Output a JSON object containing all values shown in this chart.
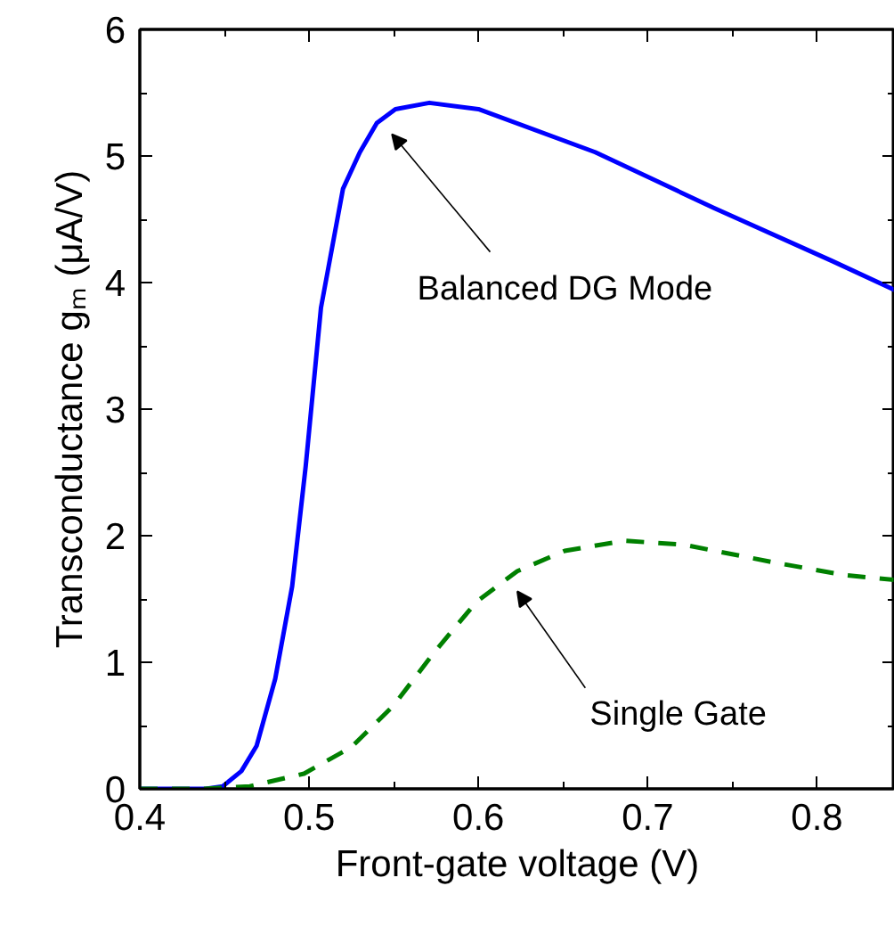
{
  "chart_data": {
    "type": "line",
    "xlabel": "Front-gate voltage (V)",
    "ylabel": "Transconductance gₘ (μA/V)",
    "xlim": [
      0.4,
      0.846
    ],
    "ylim": [
      0,
      6
    ],
    "xticks": [
      0.4,
      {
        "value": 0.45,
        "label": null
      },
      0.5,
      {
        "value": 0.55,
        "label": null
      },
      0.6,
      {
        "value": 0.65,
        "label": null
      },
      0.7,
      {
        "value": 0.75,
        "label": null
      },
      0.8
    ],
    "yticks": [
      0,
      {
        "value": 0.5,
        "label": null
      },
      1,
      {
        "value": 1.5,
        "label": null
      },
      2,
      {
        "value": 2.5,
        "label": null
      },
      3,
      {
        "value": 3.5,
        "label": null
      },
      4,
      {
        "value": 4.5,
        "label": null
      },
      5,
      {
        "value": 5.5,
        "label": null
      },
      6
    ],
    "grid": false,
    "series": [
      {
        "color": "#0000ff",
        "line_style": "solid",
        "x": [
          0.4,
          0.439,
          0.449,
          0.46,
          0.469,
          0.48,
          0.49,
          0.498,
          0.507,
          0.52,
          0.53,
          0.54,
          0.551,
          0.571,
          0.6,
          0.669,
          0.739,
          0.809,
          0.846
        ],
        "values": [
          0,
          0,
          0.02,
          0.14,
          0.34,
          0.87,
          1.6,
          2.55,
          3.8,
          4.74,
          5.03,
          5.26,
          5.37,
          5.42,
          5.37,
          5.03,
          4.59,
          4.17,
          3.94
        ]
      },
      {
        "color": "#008000",
        "line_style": "dashed",
        "x": [
          0.4,
          0.437,
          0.465,
          0.497,
          0.525,
          0.55,
          0.574,
          0.599,
          0.623,
          0.651,
          0.686,
          0.721,
          0.774,
          0.816,
          0.846
        ],
        "values": [
          0,
          0,
          0.02,
          0.12,
          0.33,
          0.66,
          1.08,
          1.48,
          1.72,
          1.88,
          1.96,
          1.93,
          1.79,
          1.69,
          1.65
        ]
      }
    ],
    "annotations": [
      "Balanced DG Mode",
      "Single Gate"
    ]
  }
}
